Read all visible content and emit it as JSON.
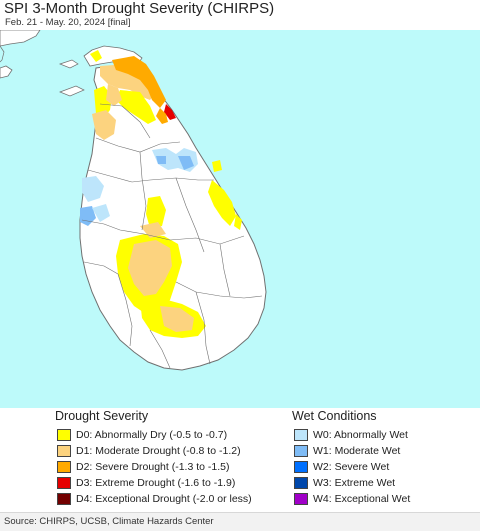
{
  "header": {
    "title": "SPI 3-Month Drought Severity (CHIRPS)",
    "subtitle": "Feb. 21 - May. 20, 2024 [final]"
  },
  "colors": {
    "sea": "#bdfafa",
    "land": "#ffffff",
    "border": "#707070",
    "D0": "#ffff00",
    "D1": "#fcd37f",
    "D2": "#ffaa00",
    "D3": "#e60000",
    "D4": "#730000",
    "W0": "#bde5fb",
    "W1": "#7fbcf6",
    "W2": "#0070ff",
    "W3": "#0047ab",
    "W4": "#a000c8"
  },
  "legend": {
    "drought_title": "Drought Severity",
    "wet_title": "Wet Conditions",
    "drought_items": [
      {
        "code": "D0",
        "label": "D0: Abnormally Dry (-0.5 to -0.7)",
        "color": "#ffff00"
      },
      {
        "code": "D1",
        "label": "D1: Moderate Drought (-0.8 to -1.2)",
        "color": "#fcd37f"
      },
      {
        "code": "D2",
        "label": "D2: Severe Drought (-1.3 to -1.5)",
        "color": "#ffaa00"
      },
      {
        "code": "D3",
        "label": "D3: Extreme Drought (-1.6 to -1.9)",
        "color": "#e60000"
      },
      {
        "code": "D4",
        "label": "D4: Exceptional Drought (-2.0 or less)",
        "color": "#730000"
      }
    ],
    "wet_items": [
      {
        "code": "W0",
        "label": "W0: Abnormally Wet",
        "color": "#bde5fb"
      },
      {
        "code": "W1",
        "label": "W1: Moderate Wet",
        "color": "#7fbcf6"
      },
      {
        "code": "W2",
        "label": "W2: Severe Wet",
        "color": "#0070ff"
      },
      {
        "code": "W3",
        "label": "W3: Extreme Wet",
        "color": "#0047ab"
      },
      {
        "code": "W4",
        "label": "W4: Exceptional Wet",
        "color": "#a000c8"
      }
    ]
  },
  "footer": {
    "source": "Source: CHIRPS, UCSB, Climate Hazards Center"
  }
}
